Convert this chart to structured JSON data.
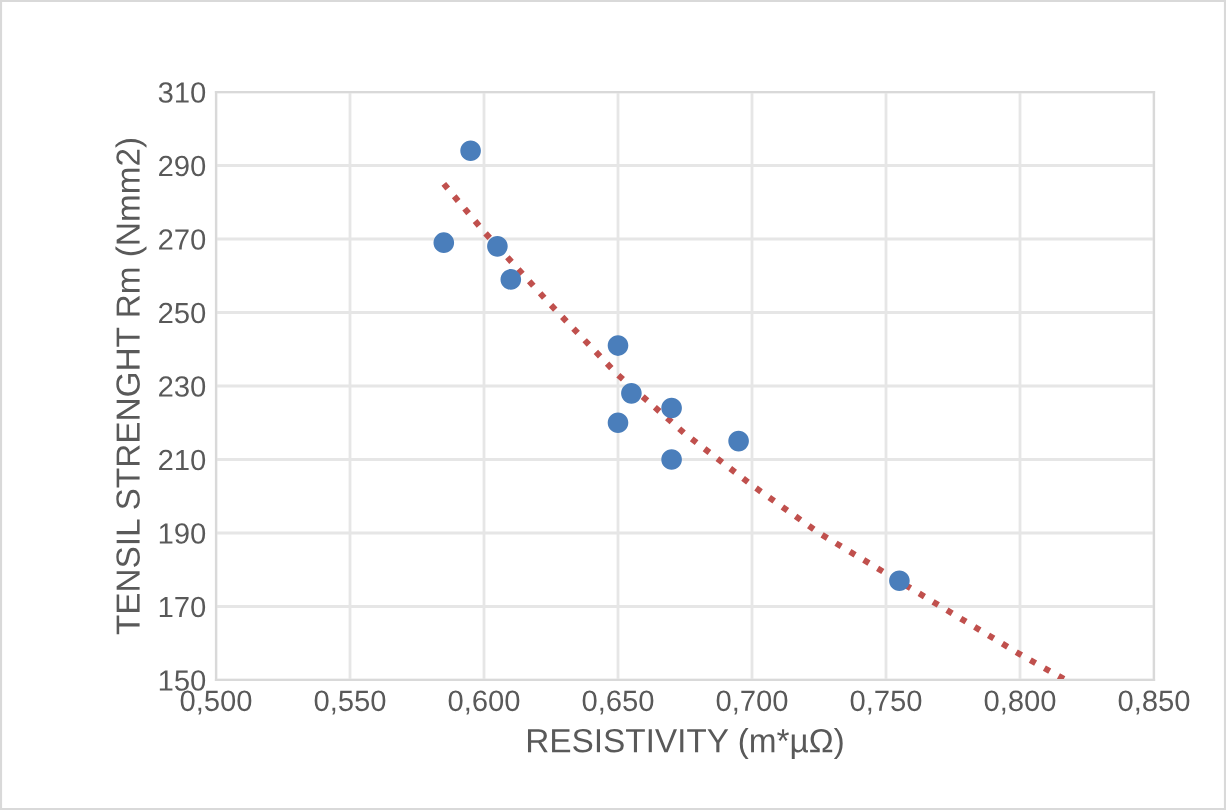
{
  "chart_data": {
    "type": "scatter",
    "xlabel": "RESISTIVITY (m*µΩ)",
    "ylabel": "TENSIL STRENGHT Rm (Nmm2)",
    "xlim": [
      0.5,
      0.85
    ],
    "ylim": [
      150,
      310
    ],
    "xticks": [
      {
        "value": 0.5,
        "label": "0,500"
      },
      {
        "value": 0.55,
        "label": "0,550"
      },
      {
        "value": 0.6,
        "label": "0,600"
      },
      {
        "value": 0.65,
        "label": "0,650"
      },
      {
        "value": 0.7,
        "label": "0,700"
      },
      {
        "value": 0.75,
        "label": "0,750"
      },
      {
        "value": 0.8,
        "label": "0,800"
      },
      {
        "value": 0.85,
        "label": "0,850"
      }
    ],
    "yticks": [
      150,
      170,
      190,
      210,
      230,
      250,
      270,
      290,
      310
    ],
    "grid": true,
    "marker": "circle",
    "series": [
      {
        "color": "#4a7ebb",
        "x": [
          0.585,
          0.595,
          0.605,
          0.61,
          0.65,
          0.65,
          0.655,
          0.67,
          0.67,
          0.695,
          0.755
        ],
        "values": [
          269,
          294,
          268,
          259,
          241,
          220,
          228,
          224,
          210,
          215,
          177
        ]
      },
      {
        "type": "line",
        "color": "#c0504d",
        "line_style": "dotted",
        "marker": "none",
        "x": [
          0.585,
          0.6,
          0.625,
          0.65,
          0.675,
          0.7,
          0.725,
          0.75,
          0.775,
          0.8,
          0.817
        ],
        "values": [
          285,
          272,
          252,
          233,
          217,
          203,
          190,
          179,
          168,
          157,
          150
        ]
      }
    ]
  }
}
